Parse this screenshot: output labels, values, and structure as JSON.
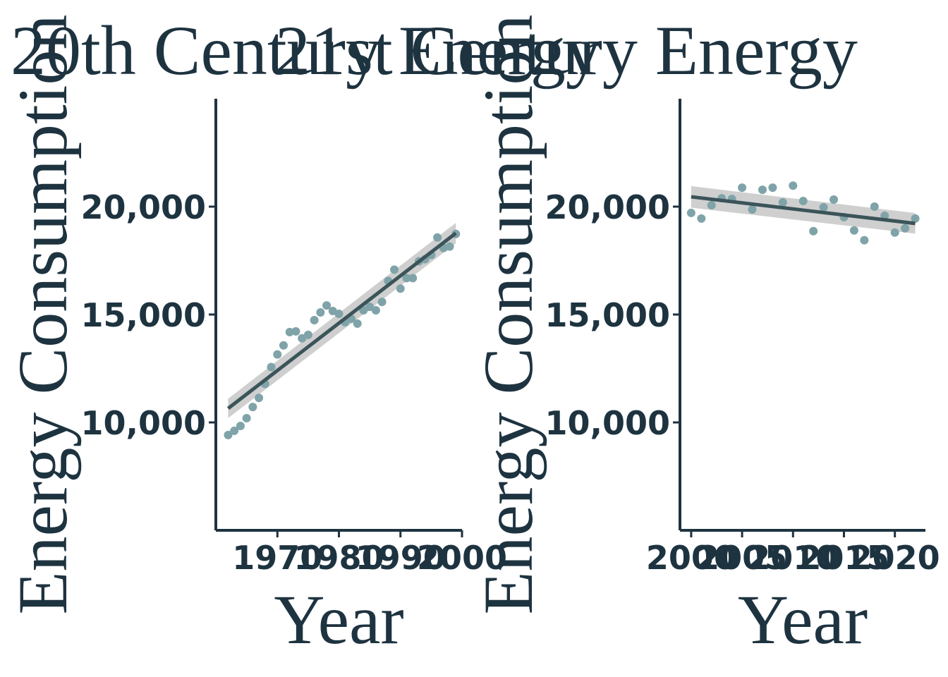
{
  "chart_data": [
    {
      "type": "scatter",
      "title": "20th Century Energy",
      "x_label": "Year",
      "y_label": "Energy Consumption",
      "x": [
        1962,
        1963,
        1964,
        1965,
        1966,
        1967,
        1968,
        1969,
        1970,
        1971,
        1972,
        1973,
        1974,
        1975,
        1976,
        1977,
        1978,
        1979,
        1980,
        1981,
        1982,
        1983,
        1984,
        1985,
        1986,
        1987,
        1988,
        1989,
        1990,
        1991,
        1992,
        1993,
        1994,
        1995,
        1996,
        1997,
        1998,
        1999
      ],
      "values": [
        9416,
        9610,
        9838,
        10195,
        10714,
        11136,
        11786,
        12565,
        13149,
        13571,
        14188,
        14221,
        13896,
        14058,
        14740,
        15097,
        15422,
        15162,
        15032,
        14643,
        14805,
        14578,
        15195,
        15357,
        15195,
        15584,
        16558,
        17078,
        16201,
        16688,
        16688,
        17468,
        17565,
        17760,
        18571,
        18084,
        18149,
        18734
      ],
      "color": "#7fa3a8",
      "fit": {
        "x": [
          1962,
          1999
        ],
        "y": [
          10650,
          18770
        ],
        "lower": [
          10200,
          18300
        ],
        "upper": [
          11100,
          19250
        ],
        "color": "#3b5459",
        "band_color": "#cfcfcf"
      },
      "xlim": [
        1960,
        2000
      ],
      "xticks": [
        1970,
        1980,
        1990,
        2000
      ],
      "ylim": [
        5000,
        25000
      ],
      "yticks": [
        {
          "value": 10000,
          "label": "10,000"
        },
        {
          "value": 15000,
          "label": "15,000"
        },
        {
          "value": 20000,
          "label": "20,000"
        }
      ]
    },
    {
      "type": "scatter",
      "title": "21st Century Energy",
      "x_label": "Year",
      "y_label": "Energy Consumption",
      "x": [
        2000,
        2001,
        2002,
        2003,
        2004,
        2005,
        2006,
        2007,
        2008,
        2009,
        2010,
        2011,
        2012,
        2013,
        2014,
        2015,
        2016,
        2017,
        2018,
        2019,
        2020,
        2021,
        2022
      ],
      "values": [
        19708,
        19448,
        20065,
        20390,
        20357,
        20877,
        19870,
        20779,
        20877,
        20195,
        20974,
        20260,
        18864,
        19968,
        20325,
        19513,
        18896,
        18442,
        20000,
        19578,
        18799,
        18994,
        19448
      ],
      "color": "#7fa3a8",
      "fit": {
        "x": [
          2000,
          2022
        ],
        "y": [
          20455,
          19221
        ],
        "lower": [
          19950,
          18750
        ],
        "upper": [
          20950,
          19700
        ],
        "color": "#3b5459",
        "band_color": "#cfcfcf"
      },
      "xlim": [
        1998.9,
        2023
      ],
      "xticks": [
        2000,
        2005,
        2010,
        2015,
        2020
      ],
      "ylim": [
        5000,
        25000
      ],
      "yticks": [
        {
          "value": 10000,
          "label": "10,000"
        },
        {
          "value": 15000,
          "label": "15,000"
        },
        {
          "value": 20000,
          "label": "20,000"
        }
      ]
    }
  ]
}
